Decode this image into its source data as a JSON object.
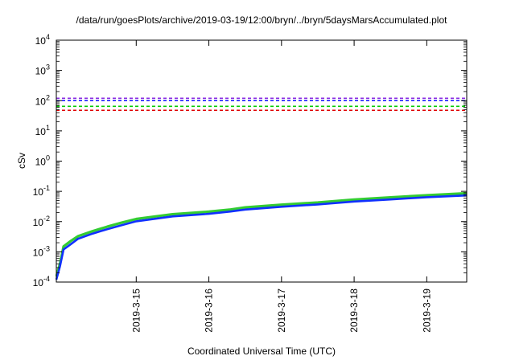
{
  "chart_data": {
    "type": "line",
    "title": "/data/run/goesPlots/archive/2019-03-19/12:00/bryn/../bryn/5daysMarsAccumulated.plot",
    "xlabel": "Coordinated Universal Time (UTC)",
    "ylabel": "cSv",
    "y_scale": "log",
    "ylim": [
      0.0001,
      10000
    ],
    "xlim": [
      -1.1,
      4.55
    ],
    "x_ticks": [
      {
        "label": "2019-3-15",
        "value": 0
      },
      {
        "label": "2019-3-16",
        "value": 1
      },
      {
        "label": "2019-3-17",
        "value": 2
      },
      {
        "label": "2019-3-18",
        "value": 3
      },
      {
        "label": "2019-3-19",
        "value": 4
      }
    ],
    "y_ticks": [
      {
        "base": "10",
        "exp": "-4",
        "value": 0.0001
      },
      {
        "base": "10",
        "exp": "-3",
        "value": 0.001
      },
      {
        "base": "10",
        "exp": "-2",
        "value": 0.01
      },
      {
        "base": "10",
        "exp": "-1",
        "value": 0.1
      },
      {
        "base": "10",
        "exp": "0",
        "value": 1
      },
      {
        "base": "10",
        "exp": "1",
        "value": 10
      },
      {
        "base": "10",
        "exp": "2",
        "value": 100
      },
      {
        "base": "10",
        "exp": "3",
        "value": 1000
      },
      {
        "base": "10",
        "exp": "4",
        "value": 10000
      }
    ],
    "grid": false,
    "thresholds": [
      {
        "color": "#8a2be2",
        "y": 120
      },
      {
        "color": "#1010ff",
        "y": 100
      },
      {
        "color": "#00cc00",
        "y": 65
      },
      {
        "color": "#e00000",
        "y": 48
      }
    ],
    "series": [
      {
        "color": "#33cc33",
        "x": [
          -1.1,
          -1.05,
          -1.0,
          -0.9,
          -0.8,
          -0.6,
          -0.4,
          -0.2,
          0.0,
          0.5,
          1.0,
          1.3,
          1.5,
          2.0,
          2.5,
          3.0,
          3.5,
          4.0,
          4.55
        ],
        "y": [
          0.00015,
          0.0004,
          0.0015,
          0.0023,
          0.0033,
          0.0048,
          0.0068,
          0.0092,
          0.0122,
          0.0175,
          0.0213,
          0.0251,
          0.0295,
          0.0363,
          0.0427,
          0.0537,
          0.0631,
          0.0741,
          0.0863
        ]
      },
      {
        "color": "#1030ff",
        "x": [
          -1.1,
          -1.05,
          -1.0,
          -0.9,
          -0.8,
          -0.6,
          -0.4,
          -0.2,
          0.0,
          0.5,
          1.0,
          1.3,
          1.5,
          2.0,
          2.5,
          3.0,
          3.5,
          4.0,
          4.55
        ],
        "y": [
          0.00012,
          0.00033,
          0.0012,
          0.0018,
          0.0027,
          0.004,
          0.0056,
          0.0076,
          0.0102,
          0.0148,
          0.018,
          0.0215,
          0.025,
          0.031,
          0.037,
          0.046,
          0.054,
          0.064,
          0.0734
        ]
      }
    ]
  }
}
